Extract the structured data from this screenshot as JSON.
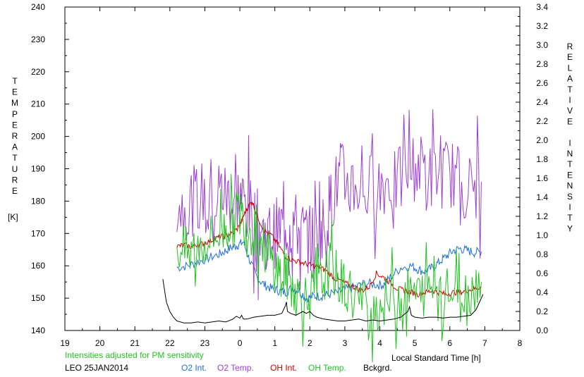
{
  "chart_data": {
    "type": "line",
    "left_axis_label": "TEMPERATURE",
    "left_axis_unit": "[K]",
    "right_axis_label": "RELATIVE INTENSITY",
    "xlabel": "Local Standard Time [h]",
    "note": "Intensities adjusted for PM sensitivity",
    "station_date": "LEO 25JAN2014",
    "x_ticks": [
      "19",
      "20",
      "21",
      "22",
      "23",
      "0",
      "1",
      "2",
      "3",
      "4",
      "5",
      "6",
      "7",
      "8"
    ],
    "xlim": [
      19,
      32
    ],
    "ylim_left": [
      140,
      240
    ],
    "y_ticks_left": [
      "140",
      "150",
      "160",
      "170",
      "180",
      "190",
      "200",
      "210",
      "220",
      "230",
      "240"
    ],
    "ylim_right": [
      0,
      3.4
    ],
    "y_ticks_right": [
      "0.0",
      "0.2",
      "0.4",
      "0.6",
      "0.8",
      "1.0",
      "1.2",
      "1.4",
      "1.6",
      "1.8",
      "2.0",
      "2.2",
      "2.4",
      "2.6",
      "2.8",
      "3.0",
      "3.2",
      "3.4"
    ],
    "grid": false,
    "legend_position": "bottom",
    "series": [
      {
        "name": "O2 Int.",
        "axis": "right",
        "color": "#1f6fd6",
        "style": "noisy",
        "x": [
          22.2,
          22.5,
          22.8,
          23.1,
          23.4,
          23.6,
          23.8,
          23.95,
          24.1,
          24.3,
          24.5,
          24.7,
          24.9,
          25.1,
          25.3,
          25.5,
          25.7,
          25.9,
          26.1,
          26.3,
          26.5,
          26.8,
          27.0,
          27.3,
          27.6,
          27.9,
          28.1,
          28.3,
          28.6,
          28.9,
          29.1,
          29.3,
          29.5,
          29.7,
          29.9,
          30.1,
          30.3,
          30.5,
          30.7,
          30.9
        ],
        "y": [
          0.66,
          0.68,
          0.72,
          0.76,
          0.8,
          0.84,
          0.88,
          0.9,
          0.93,
          0.72,
          0.55,
          0.48,
          0.44,
          0.42,
          0.4,
          0.45,
          0.42,
          0.34,
          0.36,
          0.36,
          0.38,
          0.4,
          0.43,
          0.46,
          0.5,
          0.48,
          0.48,
          0.56,
          0.66,
          0.68,
          0.64,
          0.62,
          0.66,
          0.72,
          0.78,
          0.84,
          0.86,
          0.84,
          0.82,
          0.83
        ],
        "noise": 0.05
      },
      {
        "name": "O2 Temp.",
        "axis": "left",
        "color": "#9b3fd0",
        "style": "spiky",
        "x": [
          22.2,
          22.5,
          22.8,
          23.1,
          23.4,
          23.6,
          23.8,
          24.0,
          24.2,
          24.4,
          24.6,
          24.8,
          25.0,
          25.2,
          25.4,
          25.6,
          25.8,
          26.0,
          26.2,
          26.4,
          26.6,
          26.8,
          27.0,
          27.3,
          27.6,
          27.9,
          28.2,
          28.5,
          28.8,
          29.1,
          29.4,
          29.7,
          30.0,
          30.3,
          30.6,
          30.9
        ],
        "y": [
          178,
          179,
          181,
          183,
          184,
          182,
          180,
          182,
          178,
          175,
          171,
          169,
          170,
          172,
          173,
          172,
          170,
          168,
          170,
          172,
          180,
          186,
          188,
          185,
          183,
          186,
          186,
          185,
          190,
          191,
          188,
          188,
          189,
          186,
          184,
          186
        ],
        "noise": 11
      },
      {
        "name": "OH Int.",
        "axis": "right",
        "color": "#d40000",
        "style": "noisy",
        "x": [
          22.2,
          22.4,
          22.6,
          22.8,
          23.0,
          23.2,
          23.4,
          23.6,
          23.8,
          24.0,
          24.1,
          24.2,
          24.35,
          24.5,
          24.7,
          24.9,
          25.1,
          25.3,
          25.5,
          25.7,
          25.9,
          26.1,
          26.3,
          26.5,
          26.7,
          26.9,
          27.1,
          27.3,
          27.5,
          27.7,
          27.9,
          28.1,
          28.3,
          28.5,
          28.7,
          28.9,
          29.1,
          29.3,
          29.5,
          29.7,
          29.9,
          30.1,
          30.3,
          30.5,
          30.7,
          30.9
        ],
        "y": [
          0.88,
          0.9,
          0.88,
          0.9,
          0.92,
          0.95,
          0.98,
          1.0,
          1.02,
          1.1,
          1.2,
          1.28,
          1.36,
          1.2,
          1.05,
          1.0,
          0.9,
          0.78,
          0.74,
          0.72,
          0.7,
          0.68,
          0.66,
          0.62,
          0.55,
          0.52,
          0.48,
          0.45,
          0.42,
          0.46,
          0.6,
          0.56,
          0.5,
          0.44,
          0.42,
          0.4,
          0.38,
          0.4,
          0.42,
          0.4,
          0.38,
          0.4,
          0.4,
          0.42,
          0.44,
          0.46
        ],
        "noise": 0.03
      },
      {
        "name": "OH Temp.",
        "axis": "left",
        "color": "#22c222",
        "style": "spiky",
        "x": [
          22.2,
          22.5,
          22.8,
          23.1,
          23.4,
          23.6,
          23.8,
          24.0,
          24.2,
          24.4,
          24.6,
          24.8,
          25.0,
          25.2,
          25.4,
          25.6,
          25.8,
          26.0,
          26.2,
          26.4,
          26.6,
          26.8,
          27.0,
          27.3,
          27.6,
          27.9,
          28.2,
          28.5,
          28.8,
          29.1,
          29.4,
          29.7,
          30.0,
          30.3,
          30.6,
          30.9
        ],
        "y": [
          166,
          164,
          166,
          168,
          170,
          172,
          174,
          176,
          173,
          170,
          168,
          163,
          160,
          157,
          156,
          152,
          150,
          151,
          153,
          156,
          160,
          156,
          154,
          150,
          148,
          147,
          149,
          150,
          152,
          151,
          153,
          155,
          152,
          150,
          153,
          155
        ],
        "noise": 8
      },
      {
        "name": "Bckgrd.",
        "axis": "right",
        "color": "#000000",
        "style": "smooth",
        "x": [
          21.8,
          21.85,
          21.9,
          22.0,
          22.1,
          22.2,
          22.4,
          22.6,
          22.8,
          23.0,
          23.2,
          23.4,
          23.6,
          23.8,
          23.9,
          24.0,
          24.05,
          24.1,
          24.2,
          24.4,
          24.6,
          24.8,
          25.0,
          25.2,
          25.3,
          25.33,
          25.36,
          25.45,
          25.6,
          25.7,
          25.8,
          25.9,
          26.0,
          26.1,
          26.2,
          26.4,
          26.6,
          26.8,
          27.0,
          27.2,
          27.4,
          27.6,
          27.8,
          28.0,
          28.2,
          28.4,
          28.6,
          28.8,
          28.85,
          28.9,
          29.0,
          29.2,
          29.4,
          29.6,
          29.8,
          30.0,
          30.2,
          30.4,
          30.6,
          30.75,
          30.85,
          30.95
        ],
        "y": [
          0.54,
          0.42,
          0.3,
          0.2,
          0.14,
          0.1,
          0.08,
          0.08,
          0.09,
          0.08,
          0.09,
          0.1,
          0.09,
          0.12,
          0.15,
          0.13,
          0.16,
          0.12,
          0.12,
          0.14,
          0.15,
          0.16,
          0.16,
          0.18,
          0.26,
          0.3,
          0.2,
          0.18,
          0.16,
          0.18,
          0.2,
          0.18,
          0.2,
          0.16,
          0.14,
          0.12,
          0.11,
          0.1,
          0.1,
          0.11,
          0.12,
          0.1,
          0.11,
          0.1,
          0.11,
          0.12,
          0.14,
          0.2,
          0.25,
          0.16,
          0.14,
          0.13,
          0.14,
          0.14,
          0.13,
          0.14,
          0.14,
          0.15,
          0.16,
          0.22,
          0.3,
          0.38
        ],
        "noise": 0.0
      }
    ]
  },
  "colors": {
    "axis": "#000000",
    "note": "#22c222"
  }
}
